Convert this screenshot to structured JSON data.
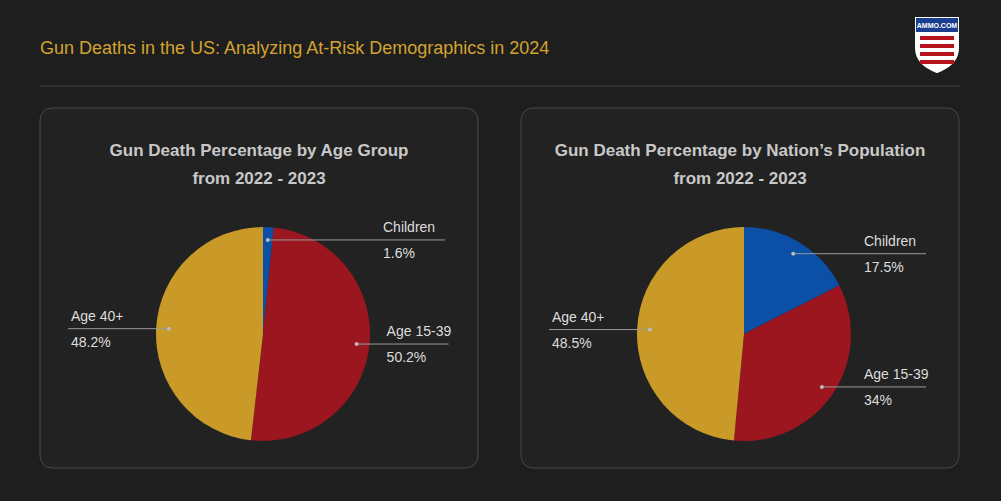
{
  "header": {
    "title": "Gun Deaths in the US: Analyzing At-Risk Demographics in 2024",
    "logo": "AMMO.COM"
  },
  "chart_data": [
    {
      "type": "pie",
      "title": [
        "Gun Death Percentage by Age Group",
        "from 2022 - 2023"
      ],
      "categories": [
        "Children",
        "Age 15-39",
        "Age 40+"
      ],
      "values": [
        1.6,
        50.2,
        48.2
      ],
      "value_labels": [
        "1.6%",
        "50.2%",
        "48.2%"
      ],
      "colors": [
        "#0b4fa6",
        "#9b161e",
        "#c99a28"
      ],
      "data_labels": true
    },
    {
      "type": "pie",
      "title": [
        "Gun Death Percentage by Nation’s Population",
        "from 2022 - 2023"
      ],
      "categories": [
        "Children",
        "Age 15-39",
        "Age 40+"
      ],
      "values": [
        17.5,
        34,
        48.5
      ],
      "value_labels": [
        "17.5%",
        "34%",
        "48.5%"
      ],
      "colors": [
        "#0b4fa6",
        "#9b161e",
        "#c99a28"
      ],
      "data_labels": true
    }
  ]
}
